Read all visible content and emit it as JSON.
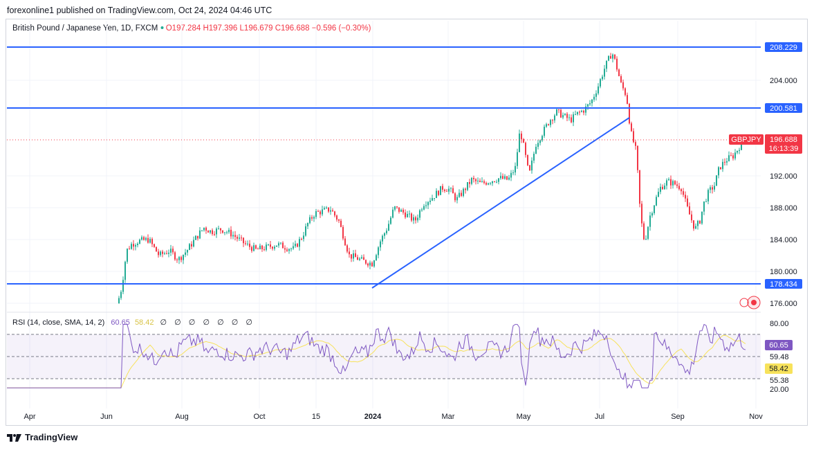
{
  "header": {
    "text": "forexonline1 published on TradingView.com, Oct 24, 2024 04:46 UTC"
  },
  "symbol": {
    "name": "British Pound / Japanese Yen, 1D, FXCM",
    "open": "O197.284",
    "high": "H197.396",
    "low": "L196.679",
    "close": "C196.688",
    "change": "−0.596 (−0.30%)",
    "ticker": "GBPJPY",
    "countdown": "16:13:39"
  },
  "rsi_legend": {
    "label": "RSI (14, close, SMA, 14, 2)",
    "rsi_value": "60.65",
    "sma_value": "58.42",
    "empty_values": "∅ ∅ ∅ ∅ ∅ ∅ ∅"
  },
  "footer": {
    "brand": "TradingView"
  },
  "colors": {
    "up": "#22ab94",
    "down": "#f23645",
    "hline": "#2962ff",
    "rsi": "#7e57c2",
    "rsi_ma": "#f7e25b",
    "price_tag": "#f23645"
  },
  "chart_data": {
    "type": "candlestick",
    "price_axis": {
      "labels": [
        "204.000",
        "192.000",
        "188.000",
        "184.000",
        "180.000",
        "176.000"
      ],
      "tagged": [
        "208.229",
        "200.581",
        "178.434",
        "196.688"
      ]
    },
    "time_axis": {
      "labels": [
        "Apr",
        "Jun",
        "Aug",
        "Oct",
        "15",
        "2024",
        "Mar",
        "May",
        "Jul",
        "Sep",
        "Nov"
      ]
    },
    "horizontal_levels": [
      208.229,
      200.581,
      178.434
    ],
    "last_price": 196.688,
    "rsi_axis": {
      "labels": [
        "80.00",
        "59.48",
        "55.38",
        "20.00"
      ],
      "tagged": [
        "60.65",
        "58.42"
      ]
    },
    "rsi_last": 60.65,
    "rsi_ma_last": 58.42
  }
}
